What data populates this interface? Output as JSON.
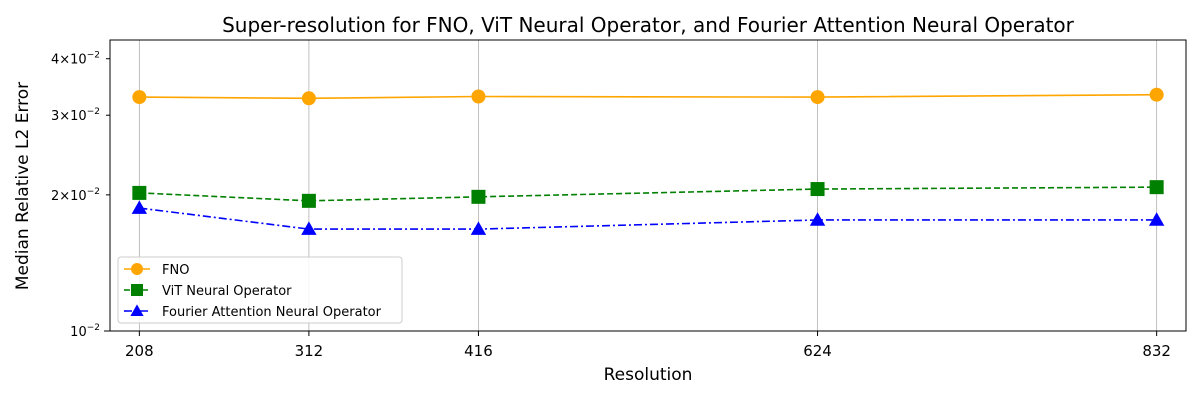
{
  "chart_data": {
    "type": "line",
    "title": "Super-resolution for FNO, ViT Neural Operator, and Fourier Attention Neural Operator",
    "xlabel": "Resolution",
    "ylabel": "Median Relative L2 Error",
    "x": [
      208,
      312,
      416,
      624,
      832
    ],
    "xticks": [
      "208",
      "312",
      "416",
      "624",
      "832"
    ],
    "xlim": [
      190,
      850
    ],
    "yscale": "log",
    "ylim": [
      0.01,
      0.044
    ],
    "yticks": [
      {
        "value": 0.01,
        "label": "10",
        "exp": "−2"
      },
      {
        "value": 0.02,
        "label": "2×10",
        "exp": "−2"
      },
      {
        "value": 0.03,
        "label": "3×10",
        "exp": "−2"
      },
      {
        "value": 0.04,
        "label": "4×10",
        "exp": "−2"
      }
    ],
    "grid": "x",
    "legend_position": "lower-left",
    "series": [
      {
        "name": "FNO",
        "color": "#FFA500",
        "marker": "circle",
        "linestyle": "solid",
        "values": [
          0.0329,
          0.0327,
          0.033,
          0.0329,
          0.0333
        ]
      },
      {
        "name": "ViT Neural Operator",
        "color": "#008000",
        "marker": "square",
        "linestyle": "dashed",
        "values": [
          0.0202,
          0.0194,
          0.0198,
          0.0206,
          0.0208
        ]
      },
      {
        "name": "Fourier Attention Neural Operator",
        "color": "#0000FF",
        "marker": "triangle",
        "linestyle": "dashdot",
        "values": [
          0.0187,
          0.0168,
          0.0168,
          0.0176,
          0.0176
        ]
      }
    ]
  }
}
